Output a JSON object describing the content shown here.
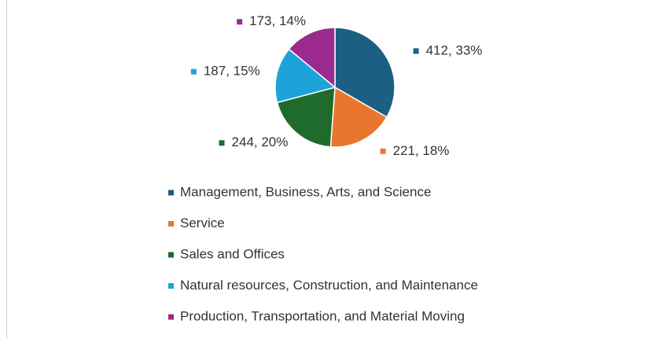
{
  "chart_data": {
    "type": "pie",
    "categories": [
      "Management, Business, Arts, and Science",
      "Service",
      "Sales and Offices",
      "Natural resources, Construction, and Maintenance",
      "Production, Transportation, and Material Moving"
    ],
    "values": [
      412,
      221,
      244,
      187,
      173
    ],
    "value_labels": [
      "412, 33%",
      "221, 18%",
      "244, 20%",
      "187, 15%",
      "173, 14%"
    ],
    "colors": [
      "#1b5f82",
      "#e9762f",
      "#1f6b2b",
      "#1ea2da",
      "#9a2a8e"
    ],
    "legend": "bottom"
  }
}
